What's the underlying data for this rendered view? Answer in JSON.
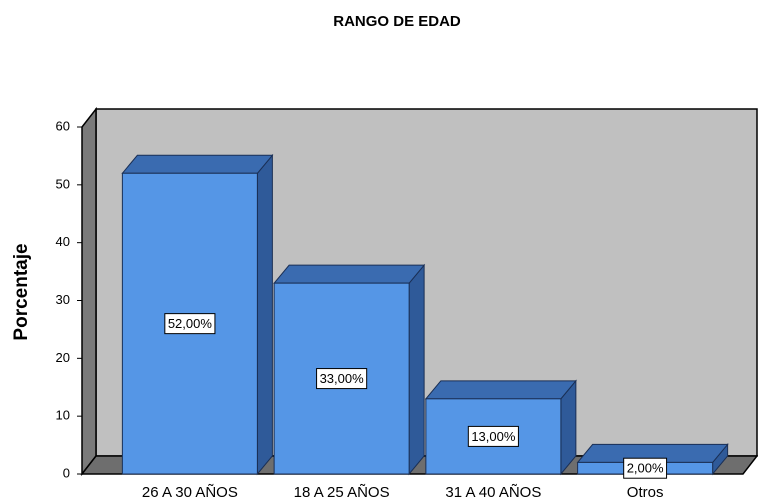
{
  "chart_data": {
    "type": "bar",
    "title": "RANGO DE EDAD",
    "y_label": "Porcentaje",
    "categories": [
      "26 A 30 AÑOS",
      "18 A 25 AÑOS",
      "31 A 40 AÑOS",
      "Otros"
    ],
    "values": [
      52,
      33,
      13,
      2
    ],
    "value_labels": [
      "52,00%",
      "33,00%",
      "13,00%",
      "2,00%"
    ],
    "color": "#5596e6",
    "ylim": [
      0,
      60
    ],
    "yticks": [
      0,
      10,
      20,
      30,
      40,
      50,
      60
    ]
  }
}
